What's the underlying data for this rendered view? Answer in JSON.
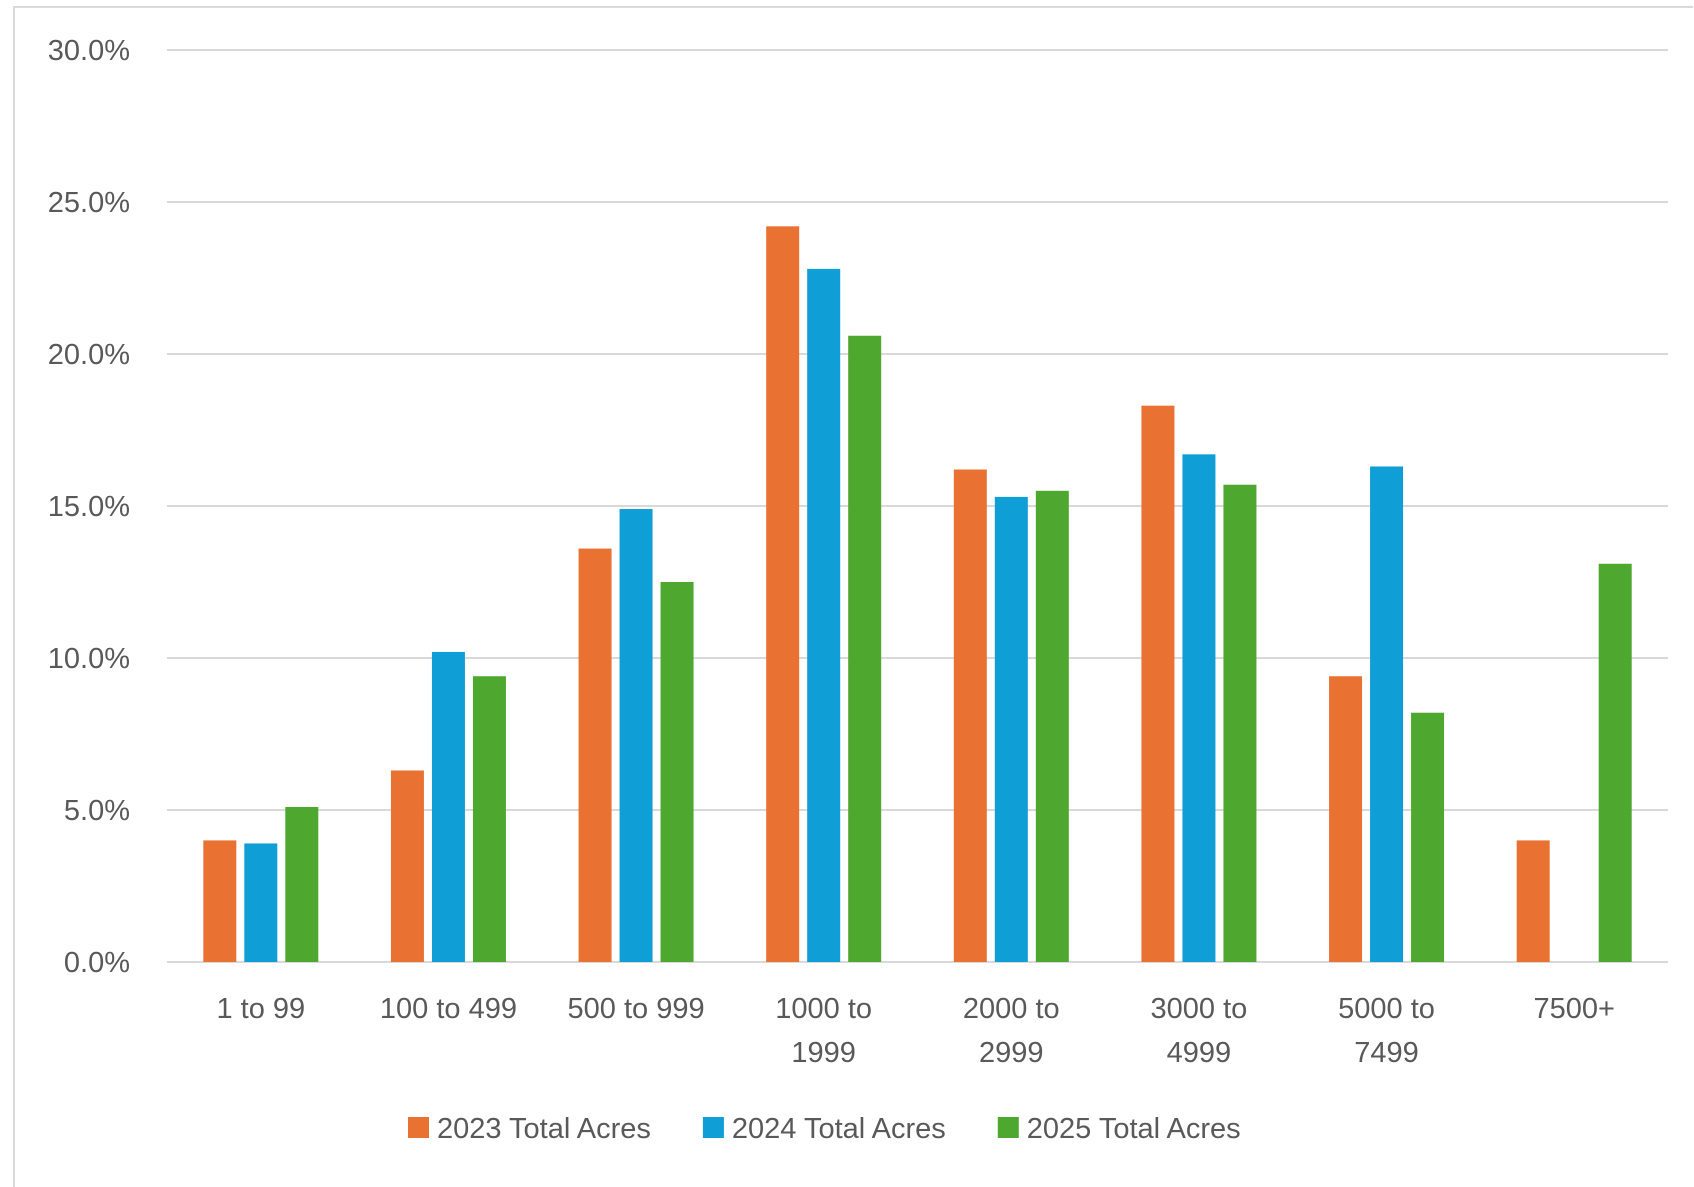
{
  "chart_data": {
    "type": "bar",
    "title": "",
    "xlabel": "",
    "ylabel": "",
    "categories": [
      "1 to 99",
      "100 to 499",
      "500 to 999",
      "1000 to 1999",
      "2000 to 2999",
      "3000 to 4999",
      "5000 to 7499",
      "7500+"
    ],
    "category_label_lines": [
      [
        "1 to 99"
      ],
      [
        "100 to 499"
      ],
      [
        "500 to 999"
      ],
      [
        "1000 to",
        "1999"
      ],
      [
        "2000 to",
        "2999"
      ],
      [
        "3000 to",
        "4999"
      ],
      [
        "5000 to",
        "7499"
      ],
      [
        "7500+"
      ]
    ],
    "series": [
      {
        "name": "2023 Total Acres",
        "color": "#E97132",
        "values": [
          4.0,
          6.3,
          13.6,
          24.2,
          16.2,
          18.3,
          9.4,
          4.0
        ]
      },
      {
        "name": "2024 Total Acres",
        "color": "#0F9ED5",
        "values": [
          3.9,
          10.2,
          14.9,
          22.8,
          15.3,
          16.7,
          16.3,
          0
        ]
      },
      {
        "name": "2025 Total Acres",
        "color": "#4EA72E",
        "values": [
          5.1,
          9.4,
          12.5,
          20.6,
          15.5,
          15.7,
          8.2,
          13.1
        ]
      }
    ],
    "ylim": [
      0,
      30
    ],
    "yticks": [
      "0.0%",
      "5.0%",
      "10.0%",
      "15.0%",
      "20.0%",
      "25.0%",
      "30.0%"
    ],
    "ytick_values": [
      0,
      5,
      10,
      15,
      20,
      25,
      30
    ],
    "grid": true,
    "legend_position": "bottom"
  },
  "colors": {
    "grid": "#d9d9d9",
    "text": "#595959"
  }
}
